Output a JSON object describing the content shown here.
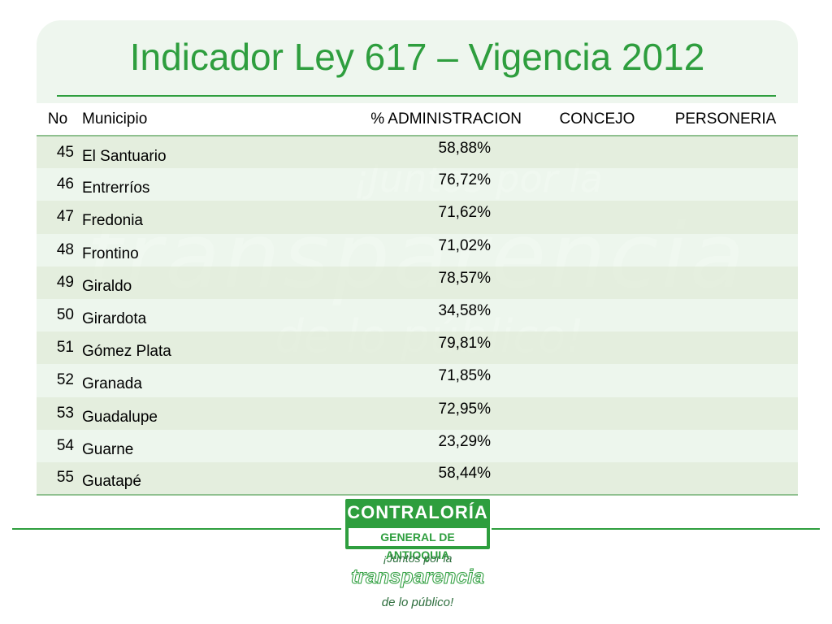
{
  "title": "Indicador Ley 617 – Vigencia 2012",
  "watermark": {
    "line1": "¡Juntos por la",
    "line2": "transparencia",
    "line3": "de lo público!"
  },
  "table": {
    "headers": {
      "no": "No",
      "municipio": "Municipio",
      "administracion": "% ADMINISTRACION",
      "concejo": "CONCEJO",
      "personeria": "PERSONERIA"
    },
    "rows": [
      {
        "no": "45",
        "municipio": "El Santuario",
        "administracion": "58,88%",
        "concejo": "",
        "personeria": ""
      },
      {
        "no": "46",
        "municipio": "Entrerríos",
        "administracion": "76,72%",
        "concejo": "",
        "personeria": ""
      },
      {
        "no": "47",
        "municipio": "Fredonia",
        "administracion": "71,62%",
        "concejo": "",
        "personeria": ""
      },
      {
        "no": "48",
        "municipio": "Frontino",
        "administracion": "71,02%",
        "concejo": "",
        "personeria": ""
      },
      {
        "no": "49",
        "municipio": "Giraldo",
        "administracion": "78,57%",
        "concejo": "",
        "personeria": ""
      },
      {
        "no": "50",
        "municipio": "Girardota",
        "administracion": "34,58%",
        "concejo": "",
        "personeria": ""
      },
      {
        "no": "51",
        "municipio": "Gómez Plata",
        "administracion": "79,81%",
        "concejo": "",
        "personeria": ""
      },
      {
        "no": "52",
        "municipio": "Granada",
        "administracion": "71,85%",
        "concejo": "",
        "personeria": ""
      },
      {
        "no": "53",
        "municipio": "Guadalupe",
        "administracion": "72,95%",
        "concejo": "",
        "personeria": ""
      },
      {
        "no": "54",
        "municipio": "Guarne",
        "administracion": "23,29%",
        "concejo": "",
        "personeria": ""
      },
      {
        "no": "55",
        "municipio": "Guatapé",
        "administracion": "58,44%",
        "concejo": "",
        "personeria": ""
      }
    ]
  },
  "logo": {
    "top": "CONTRALORÍA",
    "bottom": "GENERAL DE ANTIOQUIA",
    "slogan1": "¡Juntos por la",
    "slogan2": "transparencia",
    "slogan3": "de lo público!"
  },
  "colors": {
    "accent": "#2e9e3e",
    "card_background": "#eef6ee"
  }
}
